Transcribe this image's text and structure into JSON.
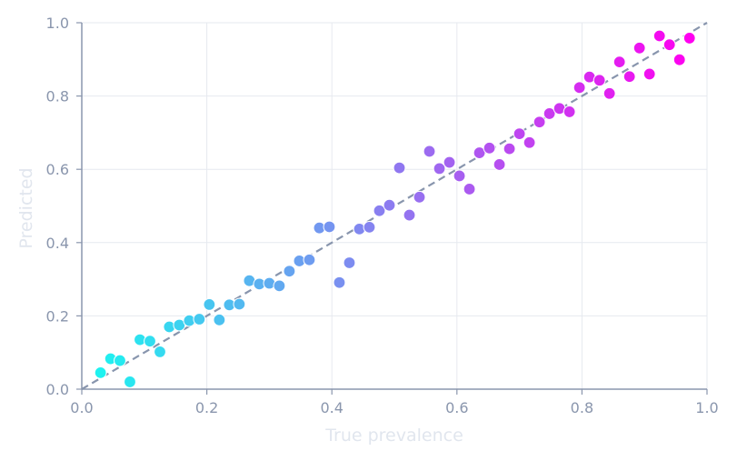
{
  "chart_data": {
    "type": "scatter",
    "title": "",
    "xlabel": "True prevalence",
    "ylabel": "Predicted",
    "xlim": [
      0,
      1
    ],
    "ylim": [
      0,
      1
    ],
    "xticks": [
      "0.0",
      "0.2",
      "0.4",
      "0.6",
      "0.8",
      "1.0"
    ],
    "yticks": [
      "0.0",
      "0.2",
      "0.4",
      "0.6",
      "0.8",
      "1.0"
    ],
    "grid": true,
    "reference_line": "y = x (dashed)",
    "color_scale": [
      "#1ef2f0",
      "#ff00f0"
    ],
    "x": [
      0.03,
      0.046,
      0.061,
      0.077,
      0.093,
      0.109,
      0.125,
      0.14,
      0.156,
      0.172,
      0.188,
      0.204,
      0.22,
      0.236,
      0.252,
      0.268,
      0.284,
      0.3,
      0.316,
      0.332,
      0.348,
      0.364,
      0.38,
      0.396,
      0.412,
      0.428,
      0.444,
      0.46,
      0.476,
      0.492,
      0.508,
      0.524,
      0.54,
      0.556,
      0.572,
      0.588,
      0.604,
      0.62,
      0.636,
      0.652,
      0.668,
      0.684,
      0.7,
      0.716,
      0.732,
      0.748,
      0.764,
      0.78,
      0.796,
      0.812,
      0.828,
      0.844,
      0.86,
      0.876,
      0.892,
      0.908,
      0.924,
      0.94,
      0.956,
      0.972
    ],
    "y": [
      0.045,
      0.083,
      0.078,
      0.02,
      0.135,
      0.131,
      0.102,
      0.17,
      0.175,
      0.187,
      0.191,
      0.231,
      0.189,
      0.23,
      0.232,
      0.296,
      0.287,
      0.289,
      0.282,
      0.322,
      0.35,
      0.353,
      0.44,
      0.443,
      0.291,
      0.345,
      0.437,
      0.442,
      0.487,
      0.502,
      0.604,
      0.475,
      0.524,
      0.649,
      0.602,
      0.619,
      0.582,
      0.546,
      0.645,
      0.658,
      0.613,
      0.656,
      0.697,
      0.673,
      0.729,
      0.752,
      0.766,
      0.757,
      0.823,
      0.852,
      0.843,
      0.807,
      0.893,
      0.853,
      0.931,
      0.86,
      0.964,
      0.94,
      0.899,
      0.958
    ]
  }
}
